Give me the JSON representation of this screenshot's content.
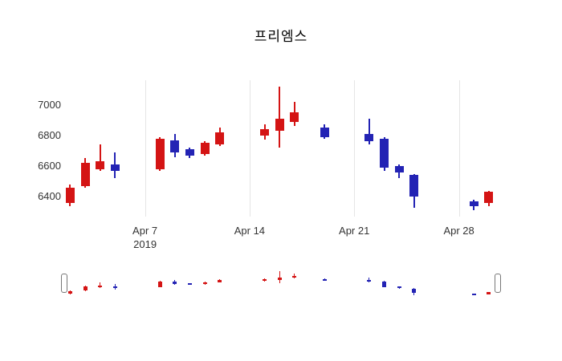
{
  "title": "프리엠스",
  "chart_data": {
    "type": "candlestick",
    "title": "프리엠스",
    "up_color": "#d41414",
    "down_color": "#2323b4",
    "grid_color": "#e5e5e5",
    "ylim": [
      6270,
      7160
    ],
    "xlim_days": [
      1.6,
      30.6
    ],
    "y_ticks": [
      7000,
      6800,
      6600,
      6400
    ],
    "x_ticks": [
      {
        "day": 7,
        "label": "Apr 7",
        "sub": "2019"
      },
      {
        "day": 14,
        "label": "Apr 14",
        "sub": ""
      },
      {
        "day": 21,
        "label": "Apr 21",
        "sub": ""
      },
      {
        "day": 28,
        "label": "Apr 28",
        "sub": ""
      }
    ],
    "legend": "none",
    "rangeslider": true,
    "candles": [
      {
        "date": "Apr 2",
        "day": 2,
        "open": 6360,
        "high": 6480,
        "low": 6340,
        "close": 6460
      },
      {
        "date": "Apr 3",
        "day": 3,
        "open": 6470,
        "high": 6650,
        "low": 6460,
        "close": 6620
      },
      {
        "date": "Apr 4",
        "day": 4,
        "open": 6580,
        "high": 6740,
        "low": 6570,
        "close": 6630
      },
      {
        "date": "Apr 5",
        "day": 5,
        "open": 6610,
        "high": 6690,
        "low": 6520,
        "close": 6570
      },
      {
        "date": "Apr 8",
        "day": 8,
        "open": 6580,
        "high": 6790,
        "low": 6570,
        "close": 6780
      },
      {
        "date": "Apr 9",
        "day": 9,
        "open": 6770,
        "high": 6810,
        "low": 6660,
        "close": 6690
      },
      {
        "date": "Apr 10",
        "day": 10,
        "open": 6710,
        "high": 6720,
        "low": 6650,
        "close": 6670
      },
      {
        "date": "Apr 11",
        "day": 11,
        "open": 6680,
        "high": 6760,
        "low": 6670,
        "close": 6750
      },
      {
        "date": "Apr 12",
        "day": 12,
        "open": 6740,
        "high": 6850,
        "low": 6730,
        "close": 6820
      },
      {
        "date": "Apr 15",
        "day": 15,
        "open": 6800,
        "high": 6870,
        "low": 6770,
        "close": 6840
      },
      {
        "date": "Apr 16",
        "day": 16,
        "open": 6830,
        "high": 7120,
        "low": 6720,
        "close": 6910
      },
      {
        "date": "Apr 17",
        "day": 17,
        "open": 6890,
        "high": 7020,
        "low": 6860,
        "close": 6950
      },
      {
        "date": "Apr 19",
        "day": 19,
        "open": 6850,
        "high": 6870,
        "low": 6780,
        "close": 6790
      },
      {
        "date": "Apr 22",
        "day": 22,
        "open": 6810,
        "high": 6910,
        "low": 6740,
        "close": 6760
      },
      {
        "date": "Apr 23",
        "day": 23,
        "open": 6780,
        "high": 6790,
        "low": 6570,
        "close": 6590
      },
      {
        "date": "Apr 24",
        "day": 24,
        "open": 6600,
        "high": 6610,
        "low": 6520,
        "close": 6560
      },
      {
        "date": "Apr 25",
        "day": 25,
        "open": 6540,
        "high": 6550,
        "low": 6330,
        "close": 6400
      },
      {
        "date": "Apr 29",
        "day": 29,
        "open": 6370,
        "high": 6380,
        "low": 6310,
        "close": 6340
      },
      {
        "date": "Apr 30",
        "day": 30,
        "open": 6360,
        "high": 6440,
        "low": 6340,
        "close": 6430
      }
    ]
  }
}
